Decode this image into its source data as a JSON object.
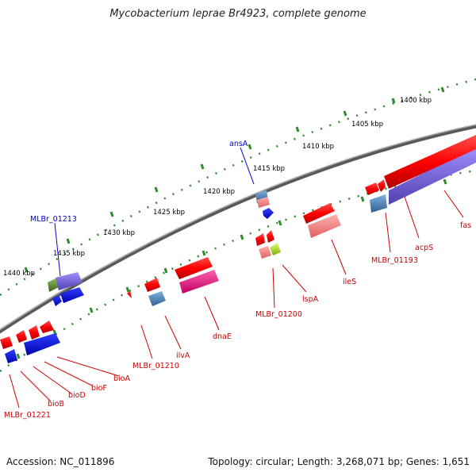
{
  "header": {
    "title": "Mycobacterium leprae Br4923, complete genome"
  },
  "footer": {
    "accession": "Accession: NC_011896",
    "summary": "Topology: circular; Length: 3,268,071 bp; Genes: 1,651"
  },
  "colors": {
    "forward_gene": "#e00000",
    "reverse_gene": "#0000e0",
    "rna_pink": "#e0006a",
    "backbone": "#808080",
    "ticks": "#2e8b2e"
  },
  "scale_ticks": [
    {
      "label": "1400 kbp"
    },
    {
      "label": "1405 kbp"
    },
    {
      "label": "1410 kbp"
    },
    {
      "label": "1415 kbp"
    },
    {
      "label": "1420 kbp"
    },
    {
      "label": "1425 kbp"
    },
    {
      "label": "1430 kbp"
    },
    {
      "label": "1435 kbp"
    },
    {
      "label": "1440 kbp"
    }
  ],
  "gene_labels": [
    {
      "name": "ansA",
      "strand": "reverse"
    },
    {
      "name": "MLBr_01213",
      "strand": "reverse"
    },
    {
      "name": "fas",
      "strand": "forward"
    },
    {
      "name": "acpS",
      "strand": "forward"
    },
    {
      "name": "MLBr_01193",
      "strand": "forward"
    },
    {
      "name": "ileS",
      "strand": "forward"
    },
    {
      "name": "lspA",
      "strand": "forward"
    },
    {
      "name": "MLBr_01200",
      "strand": "forward"
    },
    {
      "name": "dnaE",
      "strand": "forward"
    },
    {
      "name": "ilvA",
      "strand": "forward"
    },
    {
      "name": "MLBr_01210",
      "strand": "forward"
    },
    {
      "name": "bioA",
      "strand": "forward"
    },
    {
      "name": "bioF",
      "strand": "forward"
    },
    {
      "name": "bioD",
      "strand": "forward"
    },
    {
      "name": "bioB",
      "strand": "forward"
    },
    {
      "name": "MLBr_01221",
      "strand": "forward"
    }
  ]
}
